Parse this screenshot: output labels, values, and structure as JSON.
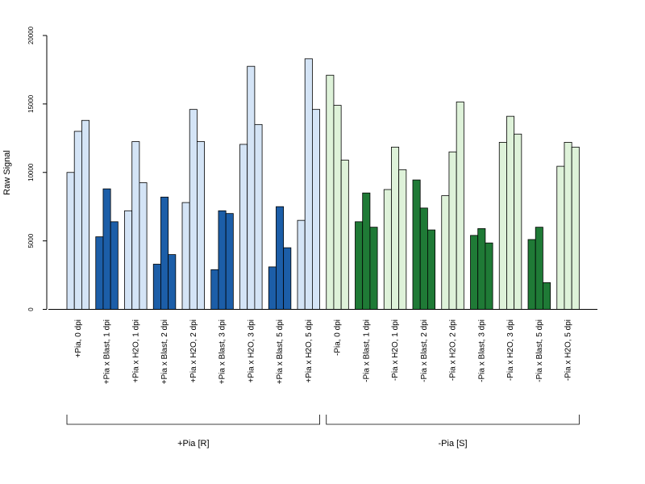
{
  "chart_data": {
    "type": "bar",
    "ylabel": "Raw Signal",
    "ylim": [
      0,
      20000
    ],
    "yticks": [
      0,
      5000,
      10000,
      15000,
      20000
    ],
    "grid": false,
    "groups": [
      {
        "label": "+Pia, 0 dpi",
        "values": [
          10000,
          13000,
          13800
        ],
        "color": "#d4e4f6"
      },
      {
        "label": "+Pia x Blast, 1 dpi",
        "values": [
          5300,
          8800,
          6400
        ],
        "color": "#1c5ea8"
      },
      {
        "label": "+Pia x H2O, 1 dpi",
        "values": [
          7200,
          12250,
          9250
        ],
        "color": "#d4e4f6"
      },
      {
        "label": "+Pia x Blast, 2 dpi",
        "values": [
          3300,
          8200,
          4000
        ],
        "color": "#1c5ea8"
      },
      {
        "label": "+Pia x H2O, 2 dpi",
        "values": [
          7800,
          14600,
          12250
        ],
        "color": "#d4e4f6"
      },
      {
        "label": "+Pia x Blast, 3 dpi",
        "values": [
          2900,
          7200,
          7000
        ],
        "color": "#1c5ea8"
      },
      {
        "label": "+Pia x H2O, 3 dpi",
        "values": [
          12050,
          17750,
          13500
        ],
        "color": "#d4e4f6"
      },
      {
        "label": "+Pia x Blast, 5 dpi",
        "values": [
          3100,
          7500,
          4500
        ],
        "color": "#1c5ea8"
      },
      {
        "label": "+Pia x H2O, 5 dpi",
        "values": [
          6500,
          18300,
          14600
        ],
        "color": "#d4e4f6"
      },
      {
        "label": "-Pia, 0 dpi",
        "values": [
          17100,
          14900,
          10900
        ],
        "color": "#def2d9"
      },
      {
        "label": "-Pia x Blast, 1 dpi",
        "values": [
          6400,
          8500,
          6000
        ],
        "color": "#1f7a36"
      },
      {
        "label": "-Pia x H2O, 1 dpi",
        "values": [
          8750,
          11850,
          10200
        ],
        "color": "#def2d9"
      },
      {
        "label": "-Pia x Blast, 2 dpi",
        "values": [
          9450,
          7400,
          5800
        ],
        "color": "#1f7a36"
      },
      {
        "label": "-Pia x H2O, 2 dpi",
        "values": [
          8300,
          11500,
          15150
        ],
        "color": "#def2d9"
      },
      {
        "label": "-Pia x Blast, 3 dpi",
        "values": [
          5400,
          5900,
          4850
        ],
        "color": "#1f7a36"
      },
      {
        "label": "-Pia x H2O, 3 dpi",
        "values": [
          12200,
          14100,
          12800
        ],
        "color": "#def2d9"
      },
      {
        "label": "-Pia x Blast, 5 dpi",
        "values": [
          5100,
          6000,
          1950
        ],
        "color": "#1f7a36"
      },
      {
        "label": "-Pia x H2O, 5 dpi",
        "values": [
          10450,
          12200,
          11850
        ],
        "color": "#def2d9"
      }
    ],
    "brackets": [
      {
        "label": "+Pia [R]",
        "from_group": 0,
        "to_group": 8
      },
      {
        "label": "-Pia [S]",
        "from_group": 9,
        "to_group": 17
      }
    ]
  }
}
